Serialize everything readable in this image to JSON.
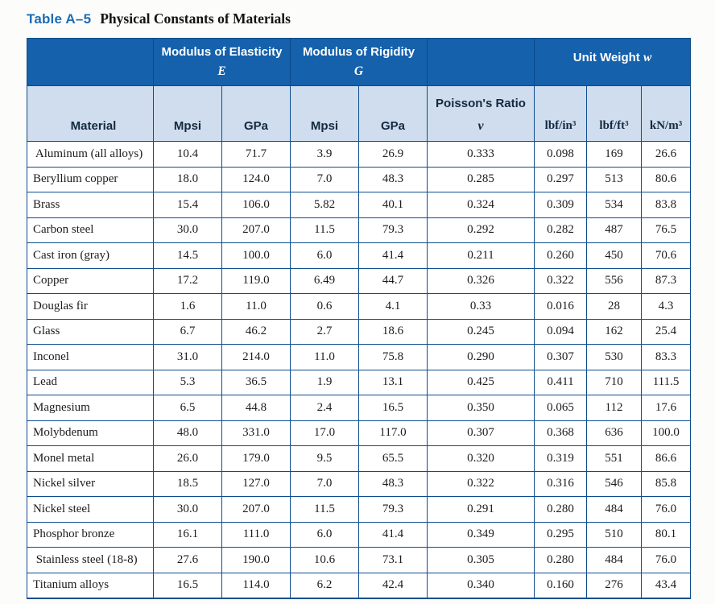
{
  "title": {
    "label": "Table A–5",
    "text": "Physical Constants of Materials"
  },
  "colors": {
    "header_dark_blue": "#1561ac",
    "header_light_blue": "#cfddee",
    "grid_border": "#0d4d8f",
    "title_accent_blue": "#1c6cb5",
    "header_text_dark": "#14293f"
  },
  "table": {
    "groups": {
      "elasticity": {
        "title": "Modulus of Elasticity",
        "symbol": "E"
      },
      "rigidity": {
        "title": "Modulus of Rigidity",
        "symbol": "G"
      },
      "unit_weight": {
        "title": "Unit Weight",
        "symbol": "w"
      }
    },
    "columns": {
      "material": "Material",
      "e_mpsi": "Mpsi",
      "e_gpa": "GPa",
      "g_mpsi": "Mpsi",
      "g_gpa": "GPa",
      "poisson_title": "Poisson's Ratio",
      "poisson_symbol": "ν",
      "w_lbf_in3": "lbf/in³",
      "w_lbf_ft3": "lbf/ft³",
      "w_kn_m3": "kN/m³"
    },
    "rows": [
      [
        " Aluminum (all alloys)",
        "10.4",
        "71.7",
        "3.9",
        "26.9",
        "0.333",
        "0.098",
        "169",
        "26.6"
      ],
      [
        "Beryllium copper",
        "18.0",
        "124.0",
        "7.0",
        "48.3",
        "0.285",
        "0.297",
        "513",
        "80.6"
      ],
      [
        "Brass",
        "15.4",
        "106.0",
        "5.82",
        "40.1",
        "0.324",
        "0.309",
        "534",
        "83.8"
      ],
      [
        "Carbon steel",
        "30.0",
        "207.0",
        "11.5",
        "79.3",
        "0.292",
        "0.282",
        "487",
        "76.5"
      ],
      [
        "Cast iron (gray)",
        "14.5",
        "100.0",
        "6.0",
        "41.4",
        "0.211",
        "0.260",
        "450",
        "70.6"
      ],
      [
        "Copper",
        "17.2",
        "119.0",
        "6.49",
        "44.7",
        "0.326",
        "0.322",
        "556",
        "87.3"
      ],
      [
        "Douglas fir",
        "1.6",
        "11.0",
        "0.6",
        "4.1",
        "0.33",
        "0.016",
        "28",
        "4.3"
      ],
      [
        "Glass",
        "6.7",
        "46.2",
        "2.7",
        "18.6",
        "0.245",
        "0.094",
        "162",
        "25.4"
      ],
      [
        "Inconel",
        "31.0",
        "214.0",
        "11.0",
        "75.8",
        "0.290",
        "0.307",
        "530",
        "83.3"
      ],
      [
        "Lead",
        "5.3",
        "36.5",
        "1.9",
        "13.1",
        "0.425",
        "0.411",
        "710",
        "111.5"
      ],
      [
        "Magnesium",
        "6.5",
        "44.8",
        "2.4",
        "16.5",
        "0.350",
        "0.065",
        "112",
        "17.6"
      ],
      [
        "Molybdenum",
        "48.0",
        "331.0",
        "17.0",
        "117.0",
        "0.307",
        "0.368",
        "636",
        "100.0"
      ],
      [
        "Monel metal",
        "26.0",
        "179.0",
        "9.5",
        "65.5",
        "0.320",
        "0.319",
        "551",
        "86.6"
      ],
      [
        "Nickel silver",
        "18.5",
        "127.0",
        "7.0",
        "48.3",
        "0.322",
        "0.316",
        "546",
        "85.8"
      ],
      [
        "Nickel steel",
        "30.0",
        "207.0",
        "11.5",
        "79.3",
        "0.291",
        "0.280",
        "484",
        "76.0"
      ],
      [
        "Phosphor bronze",
        "16.1",
        "111.0",
        "6.0",
        "41.4",
        "0.349",
        "0.295",
        "510",
        "80.1"
      ],
      [
        " Stainless steel (18-8)",
        "27.6",
        "190.0",
        "10.6",
        "73.1",
        "0.305",
        "0.280",
        "484",
        "76.0"
      ],
      [
        "Titanium alloys",
        "16.5",
        "114.0",
        "6.2",
        "42.4",
        "0.340",
        "0.160",
        "276",
        "43.4"
      ]
    ]
  }
}
